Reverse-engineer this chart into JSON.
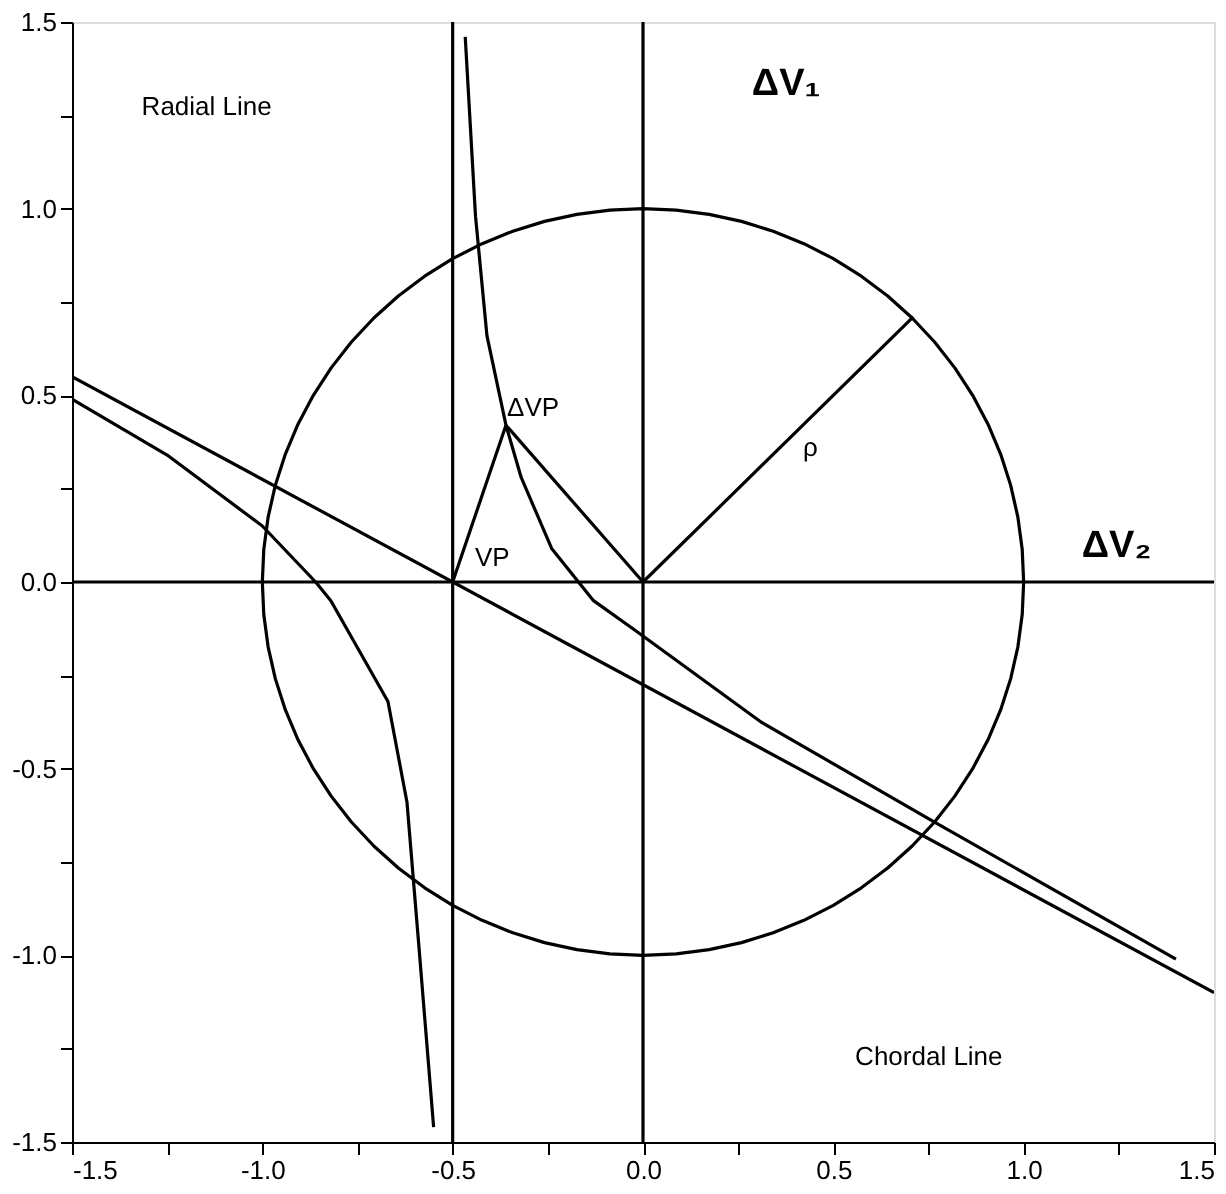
{
  "chart_data": {
    "type": "line",
    "grid": false,
    "marker": "none",
    "line_style": "solid",
    "xlim": [
      -1.5,
      1.5
    ],
    "ylim": [
      -1.5,
      1.5
    ],
    "xticks": [
      {
        "value": -1.5,
        "label": "-1.5"
      },
      {
        "value": -1.25,
        "label": null
      },
      {
        "value": -1.0,
        "label": "-1.0"
      },
      {
        "value": -0.75,
        "label": null
      },
      {
        "value": -0.5,
        "label": "-0.5"
      },
      {
        "value": -0.25,
        "label": null
      },
      {
        "value": 0,
        "label": "0.0"
      },
      {
        "value": 0.25,
        "label": null
      },
      {
        "value": 0.5,
        "label": "0.5"
      },
      {
        "value": 0.75,
        "label": null
      },
      {
        "value": 1.0,
        "label": "1.0"
      },
      {
        "value": 1.25,
        "label": null
      },
      {
        "value": 1.5,
        "label": "1.5"
      }
    ],
    "yticks": [
      {
        "value": -1.5,
        "label": "-1.5"
      },
      {
        "value": -1.25,
        "label": null
      },
      {
        "value": -1.0,
        "label": "-1.0"
      },
      {
        "value": -0.75,
        "label": null
      },
      {
        "value": -0.5,
        "label": "-0.5"
      },
      {
        "value": -0.25,
        "label": null
      },
      {
        "value": 0,
        "label": "0.0"
      },
      {
        "value": 0.25,
        "label": null
      },
      {
        "value": 0.5,
        "label": "0.5"
      },
      {
        "value": 0.75,
        "label": null
      },
      {
        "value": 1.0,
        "label": "1.0"
      },
      {
        "value": 1.25,
        "label": null
      },
      {
        "value": 1.5,
        "label": "1.5"
      }
    ],
    "series": [
      {
        "color": "#000000",
        "x": [
          -0.467,
          -0.44,
          -0.41,
          -0.36,
          -0.32,
          -0.24,
          -0.13,
          -0.02,
          0.31,
          0.76,
          1.4
        ],
        "values": [
          1.46,
          0.98,
          0.66,
          0.42,
          0.28,
          0.09,
          -0.05,
          -0.13,
          -0.375,
          -0.64,
          -1.01
        ]
      },
      {
        "color": "#000000",
        "x": [
          -1.5,
          -1.25,
          -1.0,
          -0.86,
          -0.82,
          -0.67,
          -0.62,
          -0.59,
          -0.55
        ],
        "values": [
          0.49,
          0.34,
          0.15,
          0.0,
          -0.05,
          -0.32,
          -0.59,
          -0.96,
          -1.46
        ]
      },
      {
        "color": "#000000",
        "x": [
          -1.5,
          1.5
        ],
        "values": [
          0.55,
          -1.1
        ]
      },
      {
        "color": "#000000",
        "x": [
          -0.5,
          -0.36
        ],
        "values": [
          0,
          0.42
        ]
      },
      {
        "color": "#000000",
        "x": [
          0,
          -0.36
        ],
        "values": [
          0,
          0.42
        ]
      },
      {
        "color": "#000000",
        "x": [
          0,
          0.71
        ],
        "values": [
          0,
          0.71
        ]
      }
    ],
    "ref_lines": [
      {
        "axis": "x",
        "value": -0.5,
        "color": "#000000"
      },
      {
        "axis": "x",
        "value": 0,
        "color": "#000000"
      },
      {
        "axis": "y",
        "value": 0,
        "color": "#000000"
      }
    ],
    "annotations": [
      "Radial Line",
      "ΔV₁",
      "ΔV₂",
      "ρ",
      "ΔVP",
      "VP",
      "Chordal Line"
    ]
  }
}
